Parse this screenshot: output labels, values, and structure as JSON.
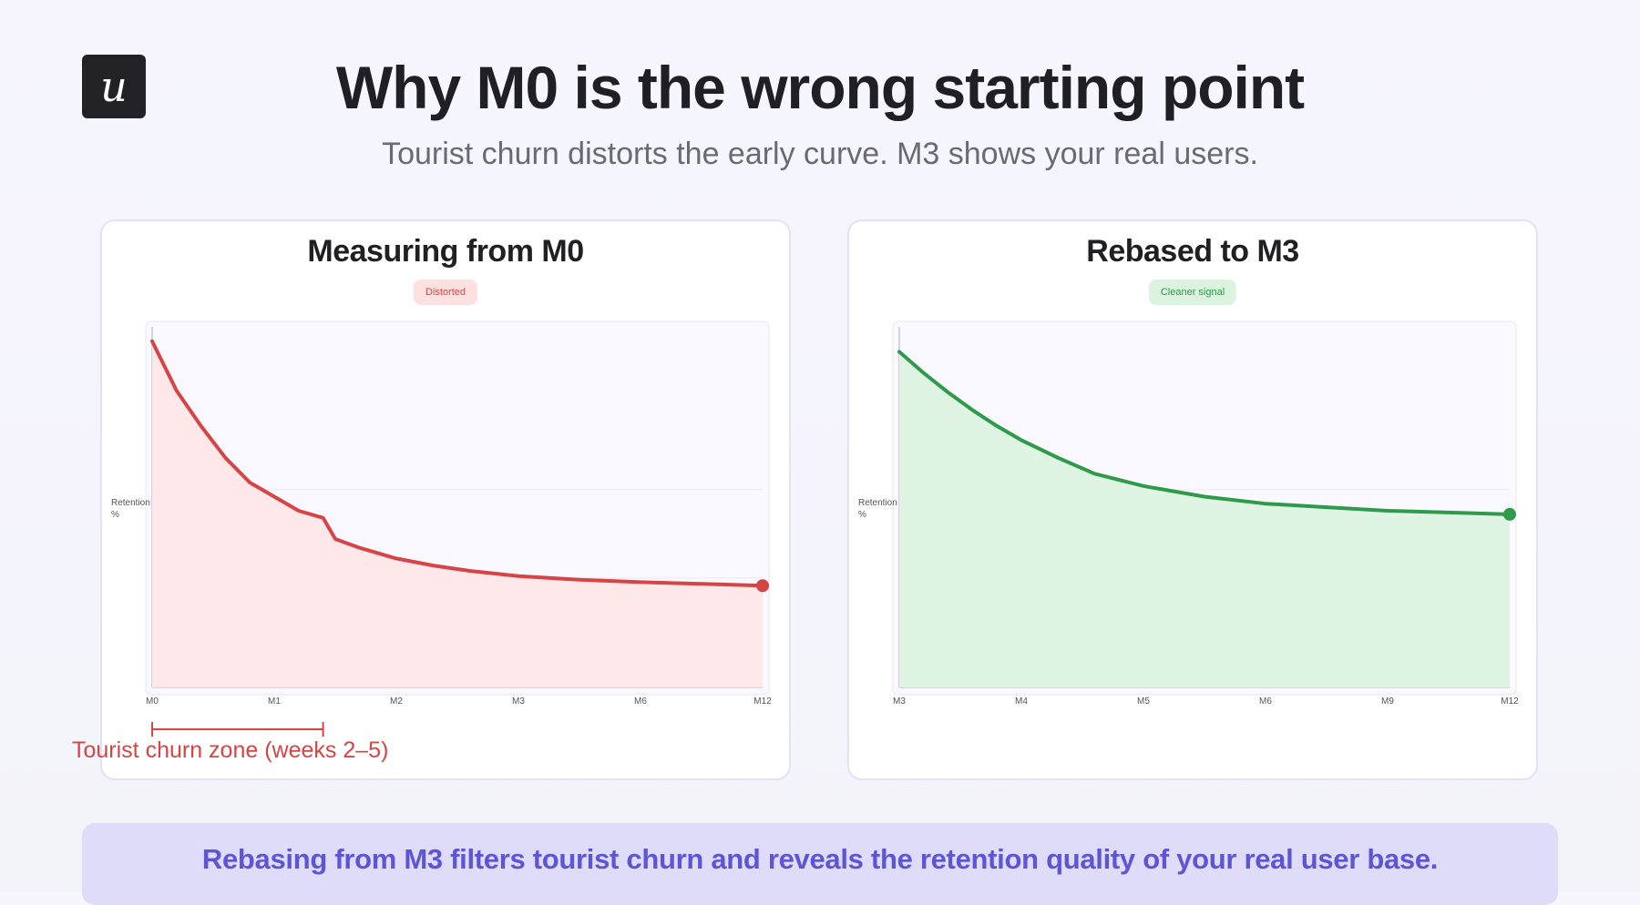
{
  "header": {
    "logo_glyph": "u",
    "title": "Why M0 is the wrong starting point",
    "subtitle": "Tourist churn distorts the early curve. M3 shows your real users."
  },
  "colors": {
    "red": "#d64545",
    "red_fill": "#fee8ea",
    "green": "#2e9a4a",
    "green_fill": "#e0f4e4",
    "accent": "#5d55d6"
  },
  "chart_data": [
    {
      "type": "area",
      "title": "Measuring from M0",
      "badge": "Distorted",
      "ylabel": "Retention %",
      "xlabel": "",
      "x": [
        "M0",
        "M1",
        "M2",
        "M3",
        "M6",
        "M12"
      ],
      "series": [
        {
          "values": [
            98,
            60,
            40,
            30,
            27,
            25
          ],
          "profile": [
            [
              0,
              98
            ],
            [
              0.2,
              84
            ],
            [
              0.4,
              74
            ],
            [
              0.6,
              65
            ],
            [
              0.8,
              58
            ],
            [
              1.0,
              54
            ],
            [
              1.2,
              50
            ],
            [
              1.4,
              48
            ],
            [
              1.5,
              42
            ],
            [
              1.7,
              39.5
            ],
            [
              2.0,
              36.5
            ],
            [
              2.3,
              34.5
            ],
            [
              2.6,
              33
            ],
            [
              3.0,
              31.5
            ],
            [
              3.5,
              30.5
            ],
            [
              4.0,
              29.8
            ],
            [
              4.5,
              29.3
            ],
            [
              5.0,
              28.8
            ]
          ]
        }
      ],
      "ylim": [
        0,
        100
      ],
      "annotation": {
        "label": "Tourist churn zone (weeks 2–5)",
        "x_start": "M0",
        "x_end": 1.4
      }
    },
    {
      "type": "area",
      "title": "Rebased to M3",
      "badge": "Cleaner signal",
      "ylabel": "Retention %",
      "xlabel": "",
      "x": [
        "M3",
        "M4",
        "M5",
        "M6",
        "M9",
        "M12"
      ],
      "series": [
        {
          "values": [
            95,
            68,
            56,
            51,
            49.5,
            48
          ],
          "profile": [
            [
              0,
              95
            ],
            [
              0.2,
              89
            ],
            [
              0.4,
              83.5
            ],
            [
              0.6,
              78.5
            ],
            [
              0.8,
              74
            ],
            [
              1.0,
              70
            ],
            [
              1.3,
              65
            ],
            [
              1.6,
              60.5
            ],
            [
              2.0,
              57
            ],
            [
              2.5,
              54
            ],
            [
              3.0,
              52
            ],
            [
              3.5,
              51
            ],
            [
              4.0,
              50
            ],
            [
              4.5,
              49.5
            ],
            [
              5.0,
              49
            ]
          ]
        }
      ],
      "ylim": [
        0,
        100
      ]
    }
  ],
  "footer": {
    "banner": "Rebasing from M3 filters tourist churn and reveals the retention quality of your real user base."
  }
}
